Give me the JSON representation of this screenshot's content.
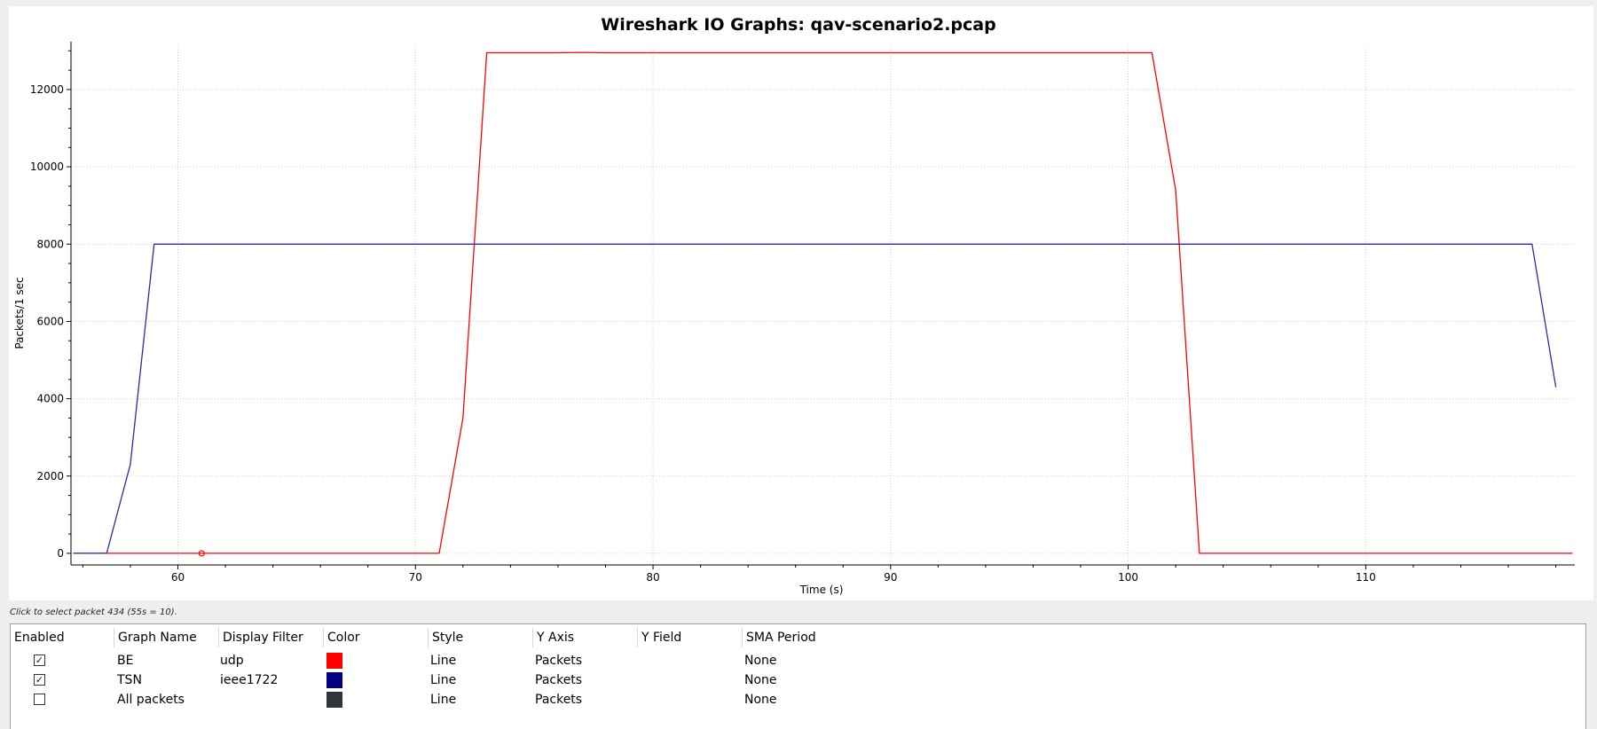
{
  "chart_data": {
    "type": "line",
    "title": "Wireshark IO Graphs: qav-scenario2.pcap",
    "xlabel": "Time (s)",
    "ylabel": "Packets/1 sec",
    "xlim": [
      55.5,
      118.8
    ],
    "ylim": [
      -300,
      13100
    ],
    "x_ticks": [
      60,
      70,
      80,
      90,
      100,
      110
    ],
    "y_ticks": [
      0,
      2000,
      4000,
      6000,
      8000,
      10000,
      12000
    ],
    "grid": true,
    "series": [
      {
        "name": "BE",
        "color": "#ff0000",
        "x": [
          55.6,
          56,
          57,
          58,
          59,
          60,
          61,
          62,
          63,
          64,
          65,
          66,
          67,
          68,
          69,
          70,
          71,
          72,
          73,
          74,
          75,
          76,
          77,
          78,
          79,
          80,
          81,
          82,
          83,
          84,
          85,
          86,
          87,
          88,
          89,
          90,
          91,
          92,
          93,
          94,
          95,
          96,
          97,
          98,
          99,
          100,
          101,
          102,
          103,
          104,
          105,
          106,
          107,
          108,
          109,
          110,
          111,
          112,
          113,
          114,
          115,
          116,
          117,
          118,
          118.7
        ],
        "values": [
          0,
          0,
          0,
          0,
          0,
          0,
          0,
          0,
          0,
          0,
          0,
          0,
          0,
          0,
          0,
          0,
          0,
          3500,
          12950,
          12950,
          12950,
          12950,
          12960,
          12950,
          12950,
          12950,
          12950,
          12950,
          12950,
          12950,
          12950,
          12950,
          12950,
          12950,
          12950,
          12950,
          12950,
          12950,
          12950,
          12950,
          12950,
          12950,
          12950,
          12950,
          12950,
          12950,
          12950,
          9400,
          0,
          0,
          0,
          0,
          0,
          0,
          0,
          0,
          0,
          0,
          0,
          0,
          0,
          0,
          0,
          0,
          0
        ],
        "marker": {
          "x": 61,
          "y": 0
        }
      },
      {
        "name": "TSN",
        "color": "#2b2ba6",
        "x": [
          55.6,
          56,
          57,
          58,
          59,
          60,
          70,
          80,
          90,
          100,
          110,
          117,
          118
        ],
        "values": [
          0,
          0,
          0,
          2300,
          8000,
          8000,
          8000,
          8000,
          8000,
          8000,
          8000,
          8000,
          4300
        ]
      }
    ]
  },
  "status": {
    "hint": "Click to select packet 434 (55s = 10)."
  },
  "table": {
    "headers": {
      "enabled": "Enabled",
      "graph_name": "Graph Name",
      "display_filter": "Display Filter",
      "color": "Color",
      "style": "Style",
      "y_axis": "Y Axis",
      "y_field": "Y Field",
      "sma_period": "SMA Period"
    },
    "rows": [
      {
        "enabled": true,
        "check_glyph": "✓",
        "name": "BE",
        "filter": "udp",
        "color": "#ff0000",
        "style": "Line",
        "y_axis": "Packets",
        "y_field": "",
        "sma": "None"
      },
      {
        "enabled": true,
        "check_glyph": "✓",
        "name": "TSN",
        "filter": "ieee1722",
        "color": "#000080",
        "style": "Line",
        "y_axis": "Packets",
        "y_field": "",
        "sma": "None"
      },
      {
        "enabled": false,
        "check_glyph": "",
        "name": "All packets",
        "filter": "",
        "color": "#30353b",
        "style": "Line",
        "y_axis": "Packets",
        "y_field": "",
        "sma": "None"
      }
    ]
  }
}
